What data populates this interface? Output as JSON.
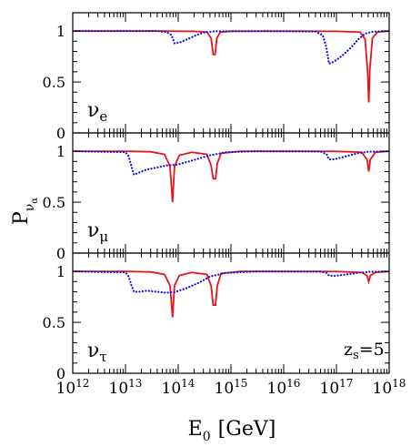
{
  "chart_data": {
    "type": "line",
    "ylabel": "P",
    "ylabel_sub": "ν",
    "ylabel_subsub": "α",
    "xlabel": "E",
    "xlabel_sub": "0",
    "xlabel_unit": "[GeV]",
    "x_scale": "log",
    "xlim": [
      1000000000000.0,
      1e+18
    ],
    "x_tick_labels": [
      {
        "base": "10",
        "exp": "12"
      },
      {
        "base": "10",
        "exp": "13"
      },
      {
        "base": "10",
        "exp": "14"
      },
      {
        "base": "10",
        "exp": "15"
      },
      {
        "base": "10",
        "exp": "16"
      },
      {
        "base": "10",
        "exp": "17"
      },
      {
        "base": "10",
        "exp": "18"
      }
    ],
    "annotation": {
      "main": "z",
      "sub": "s",
      "rest": "=5"
    },
    "panels": [
      {
        "label_main": "ν",
        "label_sub": "e",
        "ylim": [
          0,
          1.18
        ],
        "y_tick_labels": [
          "0",
          "0.5",
          "1"
        ],
        "series": [
          {
            "style": "solid",
            "color": "#e8141c",
            "points": [
              [
                1000000000000.0,
                1.0
              ],
              [
                50000000000000.0,
                1.0
              ],
              [
                90000000000000.0,
                0.999
              ],
              [
                200000000000000.0,
                0.998
              ],
              [
                350000000000000.0,
                0.99
              ],
              [
                420000000000000.0,
                0.93
              ],
              [
                460000000000000.0,
                0.77
              ],
              [
                500000000000000.0,
                0.77
              ],
              [
                540000000000000.0,
                0.93
              ],
              [
                630000000000000.0,
                0.99
              ],
              [
                1000000000000000.0,
                0.998
              ],
              [
                2e+16,
                0.999
              ],
              [
                1e+17,
                0.998
              ],
              [
                2.8e+17,
                0.99
              ],
              [
                3.5e+17,
                0.92
              ],
              [
                3.9e+17,
                0.6
              ],
              [
                4.1e+17,
                0.3
              ],
              [
                4.3e+17,
                0.62
              ],
              [
                4.8e+17,
                0.93
              ],
              [
                6e+17,
                0.99
              ],
              [
                1e+18,
                1.0
              ]
            ]
          },
          {
            "style": "dotted",
            "color": "#1010e0",
            "points": [
              [
                1000000000000.0,
                1.0
              ],
              [
                40000000000000.0,
                1.0
              ],
              [
                60000000000000.0,
                0.99
              ],
              [
                75000000000000.0,
                0.96
              ],
              [
                85000000000000.0,
                0.88
              ],
              [
                110000000000000.0,
                0.89
              ],
              [
                150000000000000.0,
                0.92
              ],
              [
                220000000000000.0,
                0.96
              ],
              [
                300000000000000.0,
                0.985
              ],
              [
                500000000000000.0,
                0.998
              ],
              [
                5000000000000000.0,
                1.0
              ],
              [
                4e+16,
                0.995
              ],
              [
                5.5e+16,
                0.96
              ],
              [
                6.5e+16,
                0.83
              ],
              [
                7.2e+16,
                0.68
              ],
              [
                9e+16,
                0.7
              ],
              [
                1.3e+17,
                0.76
              ],
              [
                1.9e+17,
                0.84
              ],
              [
                2.6e+17,
                0.92
              ],
              [
                3.5e+17,
                0.975
              ],
              [
                5e+17,
                0.995
              ],
              [
                1e+18,
                1.0
              ]
            ]
          }
        ]
      },
      {
        "label_main": "ν",
        "label_sub": "μ",
        "ylim": [
          0,
          1.18
        ],
        "y_tick_labels": [
          "0",
          "0.5",
          "1"
        ],
        "series": [
          {
            "style": "solid",
            "color": "#e8141c",
            "points": [
              [
                1000000000000.0,
                1.0
              ],
              [
                10000000000000.0,
                1.0
              ],
              [
                30000000000000.0,
                0.995
              ],
              [
                55000000000000.0,
                0.97
              ],
              [
                70000000000000.0,
                0.85
              ],
              [
                78000000000000.0,
                0.5
              ],
              [
                85000000000000.0,
                0.85
              ],
              [
                105000000000000.0,
                0.96
              ],
              [
                180000000000000.0,
                0.99
              ],
              [
                350000000000000.0,
                0.97
              ],
              [
                420000000000000.0,
                0.86
              ],
              [
                460000000000000.0,
                0.73
              ],
              [
                510000000000000.0,
                0.73
              ],
              [
                550000000000000.0,
                0.88
              ],
              [
                650000000000000.0,
                0.98
              ],
              [
                1500000000000000.0,
                1.0
              ],
              [
                1e+17,
                0.999
              ],
              [
                3e+17,
                0.99
              ],
              [
                3.8e+17,
                0.92
              ],
              [
                4.1e+17,
                0.8
              ],
              [
                4.4e+17,
                0.92
              ],
              [
                5.5e+17,
                0.99
              ],
              [
                1e+18,
                1.0
              ]
            ]
          },
          {
            "style": "dotted",
            "color": "#1010e0",
            "points": [
              [
                1000000000000.0,
                1.0
              ],
              [
                10000000000000.0,
                0.99
              ],
              [
                11500000000000.0,
                0.95
              ],
              [
                13000000000000.0,
                0.85
              ],
              [
                14500000000000.0,
                0.77
              ],
              [
                18000000000000.0,
                0.79
              ],
              [
                25000000000000.0,
                0.82
              ],
              [
                40000000000000.0,
                0.84
              ],
              [
                60000000000000.0,
                0.86
              ],
              [
                100000000000000.0,
                0.87
              ],
              [
                160000000000000.0,
                0.9
              ],
              [
                250000000000000.0,
                0.93
              ],
              [
                400000000000000.0,
                0.96
              ],
              [
                800000000000000.0,
                0.99
              ],
              [
                3000000000000000.0,
                1.0
              ],
              [
                5e+16,
                0.998
              ],
              [
                6.5e+16,
                0.97
              ],
              [
                7.2e+16,
                0.92
              ],
              [
                9e+16,
                0.92
              ],
              [
                1.5e+17,
                0.95
              ],
              [
                2.5e+17,
                0.98
              ],
              [
                4e+17,
                0.995
              ],
              [
                1e+18,
                1.0
              ]
            ]
          }
        ]
      },
      {
        "label_main": "ν",
        "label_sub": "τ",
        "ylim": [
          0,
          1.18
        ],
        "y_tick_labels": [
          "0",
          "0.5",
          "1"
        ],
        "series": [
          {
            "style": "solid",
            "color": "#e8141c",
            "points": [
              [
                1000000000000.0,
                1.0
              ],
              [
                10000000000000.0,
                1.0
              ],
              [
                30000000000000.0,
                0.995
              ],
              [
                55000000000000.0,
                0.97
              ],
              [
                70000000000000.0,
                0.86
              ],
              [
                78000000000000.0,
                0.55
              ],
              [
                85000000000000.0,
                0.86
              ],
              [
                105000000000000.0,
                0.96
              ],
              [
                180000000000000.0,
                0.99
              ],
              [
                350000000000000.0,
                0.97
              ],
              [
                420000000000000.0,
                0.86
              ],
              [
                460000000000000.0,
                0.67
              ],
              [
                510000000000000.0,
                0.67
              ],
              [
                550000000000000.0,
                0.86
              ],
              [
                650000000000000.0,
                0.98
              ],
              [
                1500000000000000.0,
                1.0
              ],
              [
                1e+17,
                0.999
              ],
              [
                3e+17,
                0.99
              ],
              [
                3.8e+17,
                0.96
              ],
              [
                4.1e+17,
                0.9
              ],
              [
                4.4e+17,
                0.96
              ],
              [
                5.5e+17,
                0.99
              ],
              [
                1e+18,
                1.0
              ]
            ]
          },
          {
            "style": "dotted",
            "color": "#1010e0",
            "points": [
              [
                1000000000000.0,
                1.0
              ],
              [
                10000000000000.0,
                0.99
              ],
              [
                11500000000000.0,
                0.95
              ],
              [
                13000000000000.0,
                0.86
              ],
              [
                14500000000000.0,
                0.8
              ],
              [
                18000000000000.0,
                0.8
              ],
              [
                25000000000000.0,
                0.81
              ],
              [
                40000000000000.0,
                0.8
              ],
              [
                60000000000000.0,
                0.79
              ],
              [
                90000000000000.0,
                0.8
              ],
              [
                150000000000000.0,
                0.84
              ],
              [
                250000000000000.0,
                0.89
              ],
              [
                400000000000000.0,
                0.95
              ],
              [
                800000000000000.0,
                0.985
              ],
              [
                3000000000000000.0,
                1.0
              ],
              [
                5e+16,
                0.998
              ],
              [
                6.5e+16,
                0.985
              ],
              [
                7.2e+16,
                0.96
              ],
              [
                9e+16,
                0.955
              ],
              [
                1.5e+17,
                0.97
              ],
              [
                2.5e+17,
                0.985
              ],
              [
                4e+17,
                0.995
              ],
              [
                1e+18,
                1.0
              ]
            ]
          }
        ]
      }
    ]
  }
}
